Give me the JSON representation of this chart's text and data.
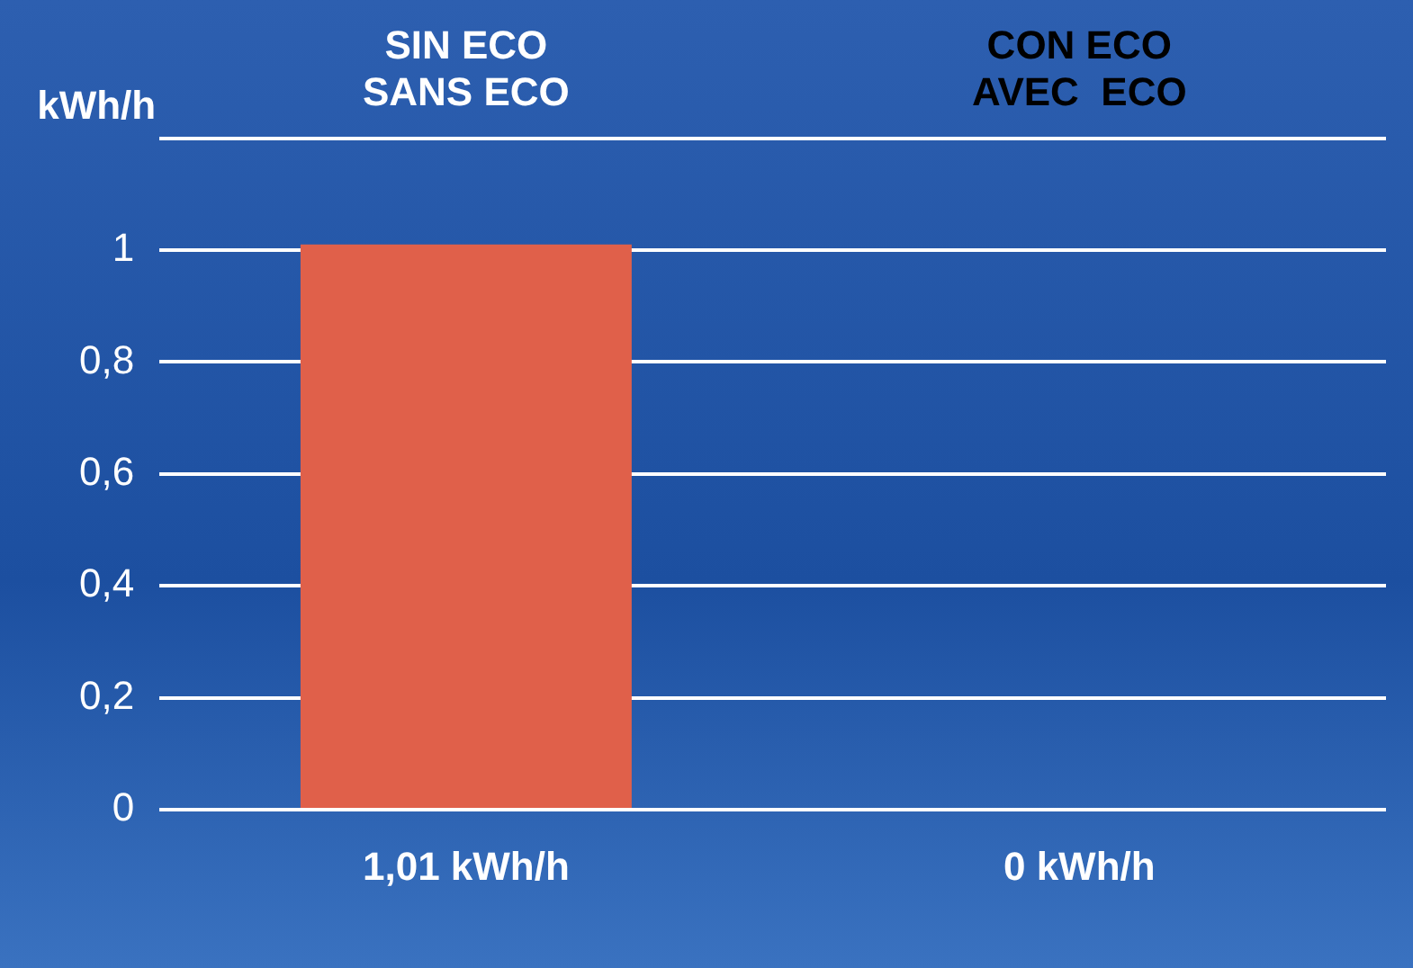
{
  "chart_data": {
    "type": "bar",
    "ylabel": "kWh/h",
    "categories": [
      "SIN ECO\nSANS ECO",
      "CON ECO\nAVEC  ECO"
    ],
    "values": [
      1.01,
      0
    ],
    "colors": [
      "#e0604a",
      "#3b7d2c"
    ],
    "value_labels": [
      "1,01 kWh/h",
      "0 kWh/h"
    ],
    "ylim": [
      0,
      1.2
    ],
    "yticks": [
      {
        "value": 0,
        "label": "0"
      },
      {
        "value": 0.2,
        "label": "0,2"
      },
      {
        "value": 0.4,
        "label": "0,4"
      },
      {
        "value": 0.6,
        "label": "0,6"
      },
      {
        "value": 0.8,
        "label": "0,8"
      },
      {
        "value": 1,
        "label": "1"
      },
      {
        "value": 1.2,
        "label": null
      }
    ],
    "grid": "y",
    "legend": false
  }
}
